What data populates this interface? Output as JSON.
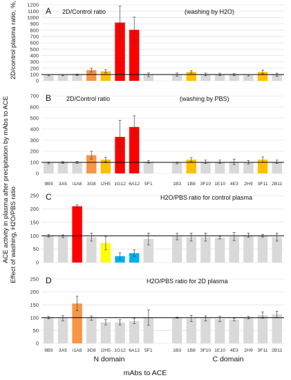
{
  "figure": {
    "ylabel_outer": "ACE activity in plasma after precipitation by mAbs to ACE",
    "domains": [
      "N domain",
      "C domain"
    ],
    "xlabel": "mAbs to ACE"
  },
  "chart_data": [
    {
      "type": "bar",
      "panel": "A",
      "title": "2D/Control ratio",
      "subtitle": "(washing by H2O)",
      "ylabel": "2D/control plasma ratio,   %,",
      "ylim": [
        0,
        1200
      ],
      "yticks": [
        0,
        100,
        200,
        300,
        400,
        500,
        600,
        700,
        800,
        900,
        1000,
        1100,
        1200
      ],
      "reference_line": 100,
      "show_categories": false,
      "categories": [
        "9B9",
        "3A5",
        "i1A8",
        "3G8",
        "i2H5",
        "1G12",
        "6A12",
        "5F1",
        "",
        "1B3",
        "1B8",
        "3F10",
        "1E10",
        "4E3",
        "2H9",
        "3F11",
        "2B11"
      ],
      "values": [
        88,
        90,
        95,
        170,
        150,
        920,
        805,
        95,
        null,
        98,
        140,
        100,
        100,
        98,
        88,
        140,
        95
      ],
      "errors": [
        10,
        10,
        12,
        30,
        25,
        260,
        200,
        30,
        null,
        25,
        20,
        22,
        20,
        15,
        12,
        30,
        25
      ],
      "colors": [
        "#d9d9d9",
        "#d9d9d9",
        "#d9d9d9",
        "#f79646",
        "#ffc000",
        "#ff0000",
        "#ff0000",
        "#d9d9d9",
        null,
        "#d9d9d9",
        "#ffc000",
        "#d9d9d9",
        "#d9d9d9",
        "#d9d9d9",
        "#d9d9d9",
        "#ffc000",
        "#d9d9d9"
      ]
    },
    {
      "type": "bar",
      "panel": "B",
      "title": "2D/Control ratio",
      "subtitle": "(washing by PBS)",
      "ylim": [
        0,
        700
      ],
      "yticks": [
        0,
        100,
        200,
        300,
        400,
        500,
        600,
        700
      ],
      "reference_line": 100,
      "show_categories": true,
      "categories": [
        "9B9",
        "3A5",
        "i1A8",
        "3G8",
        "i2H5",
        "1G12",
        "6A12",
        "5F1",
        "",
        "1B3",
        "1B8",
        "3F10",
        "1E10",
        "4E3",
        "2H9",
        "3F11",
        "2B11"
      ],
      "values": [
        95,
        98,
        100,
        165,
        125,
        330,
        420,
        105,
        null,
        95,
        125,
        105,
        105,
        105,
        100,
        125,
        105
      ],
      "errors": [
        8,
        8,
        10,
        35,
        20,
        150,
        100,
        12,
        null,
        8,
        18,
        15,
        15,
        25,
        15,
        25,
        15
      ],
      "colors": [
        "#d9d9d9",
        "#d9d9d9",
        "#d9d9d9",
        "#f79646",
        "#ffc000",
        "#ff0000",
        "#ff0000",
        "#d9d9d9",
        null,
        "#d9d9d9",
        "#ffc000",
        "#d9d9d9",
        "#d9d9d9",
        "#d9d9d9",
        "#d9d9d9",
        "#ffc000",
        "#d9d9d9"
      ]
    },
    {
      "type": "bar",
      "panel": "C",
      "title": "H2O/PBS ratio for control plasma",
      "ylabel": "Effect of washing, H2O/PBS ratio",
      "ylim": [
        0,
        250
      ],
      "yticks": [
        0,
        50,
        100,
        150,
        200,
        250
      ],
      "reference_line": 100,
      "show_categories": false,
      "categories": [
        "9B9",
        "3A5",
        "i1A8",
        "3G8",
        "i2H5",
        "1G12",
        "6A12",
        "5F1",
        "",
        "1B3",
        "1B8",
        "3F10",
        "1E10",
        "4E3",
        "2H9",
        "3F11",
        "2B11"
      ],
      "values": [
        100,
        98,
        210,
        95,
        73,
        24,
        35,
        88,
        null,
        97,
        95,
        95,
        93,
        97,
        102,
        100,
        95
      ],
      "errors": [
        5,
        5,
        5,
        15,
        25,
        12,
        12,
        22,
        null,
        12,
        15,
        15,
        5,
        15,
        8,
        5,
        15
      ],
      "colors": [
        "#d9d9d9",
        "#d9d9d9",
        "#ff0000",
        "#d9d9d9",
        "#ffff00",
        "#00b0f0",
        "#00b0f0",
        "#d9d9d9",
        null,
        "#d9d9d9",
        "#d9d9d9",
        "#d9d9d9",
        "#d9d9d9",
        "#d9d9d9",
        "#d9d9d9",
        "#d9d9d9",
        "#d9d9d9"
      ]
    },
    {
      "type": "bar",
      "panel": "D",
      "title": "H2O/PBS ratio for 2D  plasma",
      "ylim": [
        0,
        250
      ],
      "yticks": [
        0,
        50,
        100,
        150,
        200,
        250
      ],
      "reference_line": 100,
      "show_categories": true,
      "categories": [
        "9B9",
        "3A5",
        "i1A8",
        "3G8",
        "i2H5",
        "1G12",
        "6A12",
        "5F1",
        "",
        "1B3",
        "1B8",
        "3F10",
        "1E10",
        "4E3",
        "2H9",
        "3F11",
        "2B11"
      ],
      "values": [
        100,
        98,
        155,
        98,
        82,
        82,
        87,
        100,
        null,
        100,
        97,
        97,
        95,
        93,
        100,
        110,
        113
      ],
      "errors": [
        5,
        10,
        28,
        8,
        10,
        10,
        10,
        30,
        null,
        2,
        12,
        10,
        10,
        5,
        5,
        12,
        12
      ],
      "colors": [
        "#d9d9d9",
        "#d9d9d9",
        "#f79646",
        "#d9d9d9",
        "#d9d9d9",
        "#d9d9d9",
        "#d9d9d9",
        "#d9d9d9",
        null,
        "#d9d9d9",
        "#d9d9d9",
        "#d9d9d9",
        "#d9d9d9",
        "#d9d9d9",
        "#d9d9d9",
        "#d9d9d9",
        "#d9d9d9"
      ]
    }
  ]
}
